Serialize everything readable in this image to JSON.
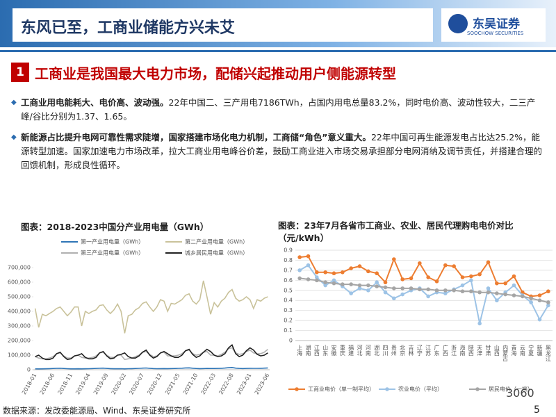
{
  "header": {
    "title": "东风已至，工商业储能方兴未艾",
    "logo": "东吴证券",
    "logo_en": "SOOCHOW SECURITIES"
  },
  "section": {
    "number": "1",
    "title": "工商业是我国最大电力市场，配储兴起推动用户侧能源转型"
  },
  "bullets": [
    {
      "bold": "工商业用电能耗大、电价高、波动强。",
      "text": "22年中国二、三产用电7186TWh，占国内用电总量83.2%，同时电价高、波动性较大，二三产峰/谷比分别为1.37、1.65。"
    },
    {
      "bold": "新能源占比提升电网可靠性需求陡增，国家搭建市场化电力机制，工商储“角色”意义重大。",
      "text": "22年中国可再生能源发电占比达25.2%，能源转型加速。国家加速电力市场改革，拉大工商业用电峰谷价差，鼓励工商业进入市场交易承担部分电网消纳及调节责任，并搭建合理的回馈机制，形成良性循环。"
    }
  ],
  "chart_data": [
    {
      "type": "line",
      "title": "图表：2018-2023中国分产业用电量（GWh）",
      "categories": [
        "2018-01",
        null,
        null,
        null,
        null,
        "2018-06",
        null,
        null,
        null,
        null,
        "2018-11",
        null,
        null,
        null,
        null,
        "2019-04",
        null,
        null,
        null,
        null,
        "2019-09",
        null,
        null,
        null,
        null,
        "2020-02",
        null,
        null,
        null,
        null,
        "2020-07",
        null,
        null,
        null,
        null,
        "2020-12",
        null,
        null,
        null,
        null,
        "2021-05",
        null,
        null,
        null,
        null,
        "2021-10",
        null,
        null,
        null,
        null,
        "2022-03",
        null,
        null,
        null,
        null,
        "2022-08",
        null,
        null,
        null,
        null,
        "2023-01",
        null,
        null,
        null,
        null,
        "2023-06"
      ],
      "series": [
        {
          "name": "第一产业用电量（GWh）",
          "color": "#2e75b6",
          "values": [
            6000,
            5500,
            6000,
            6500,
            7500,
            8500,
            10000,
            10500,
            8500,
            7000,
            6000,
            6000,
            6500,
            6000,
            6500,
            7000,
            8000,
            9000,
            10500,
            11000,
            9000,
            7500,
            6500,
            6500,
            7000,
            6000,
            7000,
            7500,
            8500,
            9500,
            11000,
            12000,
            10000,
            8000,
            7000,
            7500,
            8000,
            7500,
            8000,
            8500,
            9500,
            10500,
            12500,
            13000,
            10500,
            8500,
            7500,
            8000,
            9000,
            8500,
            8500,
            9000,
            10000,
            11500,
            14000,
            15000,
            11000,
            9000,
            8000,
            9000,
            10000,
            9500,
            9500,
            10000,
            11000,
            12500
          ]
        },
        {
          "name": "第二产业用电量（GWh）",
          "color": "#c9c29a",
          "values": [
            420000,
            290000,
            380000,
            370000,
            385000,
            400000,
            420000,
            430000,
            400000,
            370000,
            395000,
            430000,
            430000,
            300000,
            400000,
            385000,
            400000,
            410000,
            440000,
            445000,
            410000,
            385000,
            410000,
            450000,
            400000,
            250000,
            370000,
            380000,
            410000,
            425000,
            455000,
            465000,
            430000,
            400000,
            430000,
            480000,
            470000,
            400000,
            455000,
            450000,
            465000,
            480000,
            510000,
            520000,
            470000,
            450000,
            480000,
            610000,
            500000,
            380000,
            460000,
            430000,
            470000,
            490000,
            530000,
            550000,
            490000,
            470000,
            480000,
            500000,
            480000,
            420000,
            480000,
            470000,
            490000,
            500000
          ]
        },
        {
          "name": "第三产业用电量（GWh）",
          "color": "#b0b0b0",
          "values": [
            90000,
            80000,
            75000,
            75000,
            80000,
            90000,
            110000,
            115000,
            95000,
            80000,
            80000,
            95000,
            100000,
            85000,
            80000,
            80000,
            85000,
            95000,
            115000,
            120000,
            100000,
            85000,
            85000,
            100000,
            100000,
            70000,
            75000,
            80000,
            90000,
            100000,
            120000,
            125000,
            105000,
            90000,
            95000,
            115000,
            120000,
            95000,
            95000,
            95000,
            100000,
            110000,
            130000,
            135000,
            110000,
            100000,
            105000,
            120000,
            125000,
            100000,
            100000,
            95000,
            105000,
            120000,
            145000,
            150000,
            115000,
            105000,
            110000,
            125000,
            135000,
            115000,
            110000,
            110000,
            120000,
            140000
          ]
        },
        {
          "name": "城乡居民用电量（GWh）",
          "color": "#222222",
          "values": [
            90000,
            100000,
            80000,
            70000,
            70000,
            80000,
            110000,
            120000,
            90000,
            70000,
            75000,
            95000,
            100000,
            110000,
            85000,
            75000,
            75000,
            85000,
            115000,
            125000,
            95000,
            75000,
            80000,
            100000,
            105000,
            115000,
            90000,
            80000,
            80000,
            95000,
            120000,
            135000,
            100000,
            80000,
            90000,
            115000,
            125000,
            110000,
            95000,
            85000,
            85000,
            100000,
            130000,
            140000,
            105000,
            85000,
            95000,
            120000,
            140000,
            125000,
            100000,
            90000,
            95000,
            110000,
            150000,
            170000,
            110000,
            90000,
            100000,
            130000,
            150000,
            135000,
            105000,
            95000,
            100000,
            115000
          ]
        }
      ],
      "ylim": [
        0,
        700000
      ],
      "yticks": [
        0,
        {
          "value": 100000,
          "label": "100,000"
        },
        {
          "value": 200000,
          "label": "200,000"
        },
        {
          "value": 300000,
          "label": "300,000"
        },
        {
          "value": 400000,
          "label": "400,000"
        },
        {
          "value": 500000,
          "label": "500,000"
        },
        {
          "value": 600000,
          "label": "600,000"
        },
        {
          "value": 700000,
          "label": "700,000"
        }
      ],
      "grid": false,
      "legend": "top"
    },
    {
      "type": "line",
      "title": "图表：23年7月各省市工商业、农业、居民代理购电电价对比（元/kWh）",
      "categories": [
        "上海",
        "湖南",
        "江西",
        "山东",
        "安徽",
        "重庆",
        "福建",
        "河北",
        "河南",
        "湖北",
        "四川",
        "贵州",
        "北京",
        "吉林",
        "辽宁",
        "江苏",
        "广东",
        "广西",
        "浙江",
        "海南",
        "陕西",
        "天津",
        "甘肃",
        "山西",
        "内蒙古",
        "青海",
        "云南",
        "宁夏",
        "新疆",
        "黑龙江"
      ],
      "series": [
        {
          "name": "工商业电价（单一制平均）",
          "color": "#ed7d31",
          "values": [
            0.83,
            0.84,
            0.68,
            0.68,
            0.67,
            0.68,
            0.72,
            0.74,
            0.69,
            0.67,
            0.58,
            0.81,
            0.61,
            0.62,
            0.77,
            0.63,
            0.59,
            0.75,
            0.74,
            0.63,
            0.64,
            0.66,
            0.78,
            0.57,
            0.57,
            0.64,
            0.48,
            0.44,
            0.45,
            0.49
          ]
        },
        {
          "name": "农业电价（平均）",
          "color": "#9dc3e6",
          "values": [
            0.7,
            0.75,
            0.63,
            0.55,
            0.6,
            0.54,
            0.47,
            0.52,
            0.5,
            0.58,
            0.48,
            0.42,
            0.46,
            0.5,
            0.52,
            0.44,
            0.48,
            0.47,
            0.51,
            0.55,
            0.6,
            0.17,
            0.52,
            0.4,
            0.48,
            0.55,
            0.45,
            0.38,
            0.21,
            0.35
          ]
        },
        {
          "name": "居民电价（一档）",
          "color": "#a5a5a5",
          "values": [
            0.62,
            0.61,
            0.6,
            0.58,
            0.57,
            0.56,
            0.56,
            0.55,
            0.55,
            0.54,
            0.53,
            0.52,
            0.52,
            0.52,
            0.51,
            0.51,
            0.5,
            0.5,
            0.5,
            0.49,
            0.49,
            0.48,
            0.48,
            0.47,
            0.46,
            0.45,
            0.44,
            0.42,
            0.4,
            0.38
          ]
        }
      ],
      "ylim": [
        0,
        0.9
      ],
      "yticks": [
        0,
        0.1,
        0.2,
        0.3,
        0.4,
        0.5,
        0.6,
        0.7,
        0.8,
        0.9
      ],
      "grid": true,
      "markers": true,
      "legend": "bottom"
    }
  ],
  "footer": {
    "source": "数据来源：发改委能源局、Wind、东吴证券研究所",
    "page": "5",
    "watermark": "3060"
  }
}
